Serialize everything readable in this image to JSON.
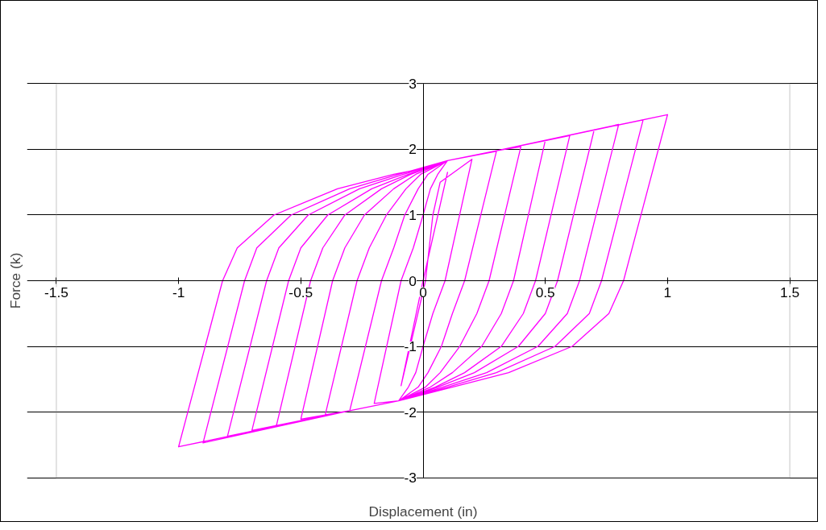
{
  "chart_data": {
    "type": "line",
    "xlabel": "Displacement (in)",
    "ylabel": "Force (k)",
    "xlim": [
      -1.5,
      1.5
    ],
    "ylim": [
      -3,
      3
    ],
    "xticks": [
      -1.5,
      -1,
      -0.5,
      0,
      0.5,
      1,
      1.5
    ],
    "yticks": [
      -3,
      -2,
      -1,
      0,
      1,
      2,
      3
    ],
    "grid": "y",
    "marker": "none",
    "line_style": "solid",
    "series": [
      {
        "color": "#ff00ff",
        "x": [
          0,
          0.1,
          0.0,
          -0.09,
          0.01,
          0.04,
          0.07,
          0.2,
          0.09,
          0.04,
          0.0,
          -0.03,
          -0.06,
          -0.1,
          -0.2,
          -0.09,
          -0.04,
          0.0,
          0.03,
          0.06,
          0.1,
          0.3,
          0.17,
          0.12,
          0.075,
          0.02,
          -0.02,
          -0.1,
          -0.3,
          -0.17,
          -0.12,
          -0.075,
          -0.02,
          0.02,
          0.1,
          0.3,
          0.4,
          0.27,
          0.22,
          0.15,
          0.07,
          0.01,
          -0.1,
          -0.3,
          -0.4,
          -0.27,
          -0.22,
          -0.15,
          -0.07,
          -0.01,
          0.1,
          0.3,
          0.5,
          0.37,
          0.32,
          0.24,
          0.12,
          0.03,
          -0.1,
          -0.3,
          -0.5,
          -0.37,
          -0.32,
          -0.24,
          -0.12,
          -0.03,
          0.1,
          0.3,
          0.6,
          0.46,
          0.41,
          0.32,
          0.17,
          0.05,
          -0.1,
          -0.3,
          -0.6,
          -0.46,
          -0.41,
          -0.32,
          -0.17,
          -0.05,
          0.1,
          0.3,
          0.7,
          0.55,
          0.5,
          0.39,
          0.21,
          0.06,
          -0.1,
          -0.3,
          -0.7,
          -0.55,
          -0.5,
          -0.39,
          -0.21,
          -0.06,
          0.1,
          0.3,
          0.8,
          0.64,
          0.59,
          0.47,
          0.26,
          0.08,
          -0.1,
          -0.3,
          -0.8,
          -0.64,
          -0.59,
          -0.47,
          -0.26,
          -0.08,
          0.1,
          0.3,
          0.9,
          0.73,
          0.68,
          0.54,
          0.3,
          0.1,
          -0.1,
          -0.3,
          -0.9,
          -0.73,
          -0.68,
          -0.54,
          -0.3,
          -0.1,
          0.1,
          0.3,
          1.0,
          0.82,
          0.76,
          0.61,
          0.35,
          0.12,
          -0.1,
          -0.3,
          -1.0,
          -0.82,
          -0.76,
          -0.61,
          -0.35,
          -0.12,
          0.03
        ],
        "values": [
          0,
          1.65,
          0,
          -1.6,
          0,
          1.0,
          1.5,
          1.85,
          0,
          -0.5,
          -1.0,
          -1.4,
          -1.62,
          -1.83,
          -1.87,
          0,
          0.5,
          1.0,
          1.4,
          1.62,
          1.83,
          1.97,
          0,
          -0.5,
          -1.0,
          -1.4,
          -1.62,
          -1.83,
          -1.98,
          0,
          0.5,
          1.0,
          1.4,
          1.62,
          1.83,
          1.98,
          2.04,
          0,
          -0.5,
          -1.0,
          -1.4,
          -1.62,
          -1.83,
          -1.98,
          -2.04,
          0,
          0.5,
          1.0,
          1.4,
          1.62,
          1.83,
          1.98,
          2.14,
          0,
          -0.5,
          -1.0,
          -1.4,
          -1.62,
          -1.83,
          -1.98,
          -2.11,
          0,
          0.5,
          1.0,
          1.4,
          1.62,
          1.83,
          1.98,
          2.21,
          0,
          -0.5,
          -1.0,
          -1.4,
          -1.62,
          -1.83,
          -1.98,
          -2.21,
          0,
          0.5,
          1.0,
          1.4,
          1.62,
          1.83,
          1.98,
          2.3,
          0,
          -0.5,
          -1.0,
          -1.4,
          -1.62,
          -1.83,
          -1.98,
          -2.28,
          0,
          0.5,
          1.0,
          1.4,
          1.62,
          1.83,
          1.98,
          2.38,
          0,
          -0.5,
          -1.0,
          -1.4,
          -1.62,
          -1.83,
          -1.98,
          -2.37,
          0,
          0.5,
          1.0,
          1.4,
          1.62,
          1.83,
          1.98,
          2.45,
          0,
          -0.5,
          -1.0,
          -1.4,
          -1.62,
          -1.83,
          -1.98,
          -2.47,
          0,
          0.5,
          1.0,
          1.4,
          1.62,
          1.83,
          1.98,
          2.53,
          0,
          -0.5,
          -1.0,
          -1.4,
          -1.62,
          -1.83,
          -1.98,
          -2.53,
          0,
          0.5,
          1.0,
          1.4,
          1.62,
          1.73
        ]
      }
    ]
  }
}
